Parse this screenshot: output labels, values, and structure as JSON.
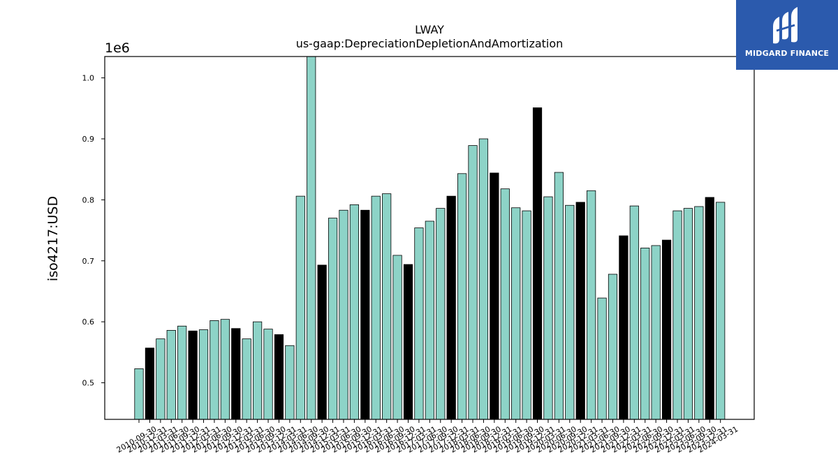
{
  "chart_data": {
    "type": "bar",
    "title": "LWAY",
    "subtitle": "us-gaap:DepreciationDepletionAndAmortization",
    "ylabel": "iso4217:USD",
    "y_offset_label": "1e6",
    "ylim": [
      440000,
      1035000
    ],
    "yticks": [
      500000,
      600000,
      700000,
      800000,
      900000,
      1000000
    ],
    "ytick_labels": [
      "0.5",
      "0.6",
      "0.7",
      "0.8",
      "0.9",
      "1.0"
    ],
    "colors": {
      "quarter": "#8dd3c7",
      "fiscal_year_end": "#000000",
      "edge": "#000000"
    },
    "categories": [
      "2010-09-30",
      "2010-12-31",
      "2011-03-31",
      "2011-06-30",
      "2011-09-30",
      "2011-12-31",
      "2012-03-31",
      "2012-06-30",
      "2012-09-30",
      "2012-12-31",
      "2013-03-31",
      "2013-06-30",
      "2013-09-30",
      "2013-12-31",
      "2014-03-31",
      "2014-06-30",
      "2014-09-30",
      "2014-12-31",
      "2015-03-31",
      "2015-06-30",
      "2015-09-30",
      "2015-12-31",
      "2016-03-31",
      "2016-06-30",
      "2016-09-30",
      "2016-12-31",
      "2017-03-31",
      "2017-06-30",
      "2017-09-30",
      "2017-12-31",
      "2018-03-31",
      "2018-06-30",
      "2018-09-30",
      "2018-12-31",
      "2019-03-31",
      "2019-06-30",
      "2019-09-30",
      "2019-12-31",
      "2020-03-31",
      "2020-06-30",
      "2020-09-30",
      "2020-12-31",
      "2021-03-31",
      "2021-06-30",
      "2021-09-30",
      "2021-12-31",
      "2022-03-31",
      "2022-06-30",
      "2022-09-30",
      "2022-12-31",
      "2023-03-31",
      "2023-06-30",
      "2023-09-30",
      "2023-12-31",
      "2024-03-31"
    ],
    "values": [
      523000,
      557000,
      572000,
      586000,
      593000,
      585000,
      587000,
      602000,
      604000,
      589000,
      572000,
      600000,
      588000,
      579000,
      561000,
      806000,
      1035000,
      693000,
      770000,
      783000,
      792000,
      783000,
      806000,
      810000,
      709000,
      694000,
      754000,
      765000,
      786000,
      806000,
      843000,
      889000,
      900000,
      844000,
      818000,
      787000,
      782000,
      951000,
      805000,
      845000,
      791000,
      796000,
      815000,
      639000,
      678000,
      741000,
      790000,
      721000,
      725000,
      734000,
      782000,
      786000,
      789000,
      804000,
      796000
    ],
    "highlight": [
      false,
      true,
      false,
      false,
      false,
      true,
      false,
      false,
      false,
      true,
      false,
      false,
      false,
      true,
      false,
      false,
      false,
      true,
      false,
      false,
      false,
      true,
      false,
      false,
      false,
      true,
      false,
      false,
      false,
      true,
      false,
      false,
      false,
      true,
      false,
      false,
      false,
      true,
      false,
      false,
      false,
      true,
      false,
      false,
      false,
      true,
      false,
      false,
      false,
      true,
      false,
      false,
      false,
      true,
      false
    ],
    "grid": false,
    "legend": "none"
  },
  "logo": {
    "text": "MIDGARD FINANCE",
    "icon": "midgard-m-logo-icon"
  }
}
